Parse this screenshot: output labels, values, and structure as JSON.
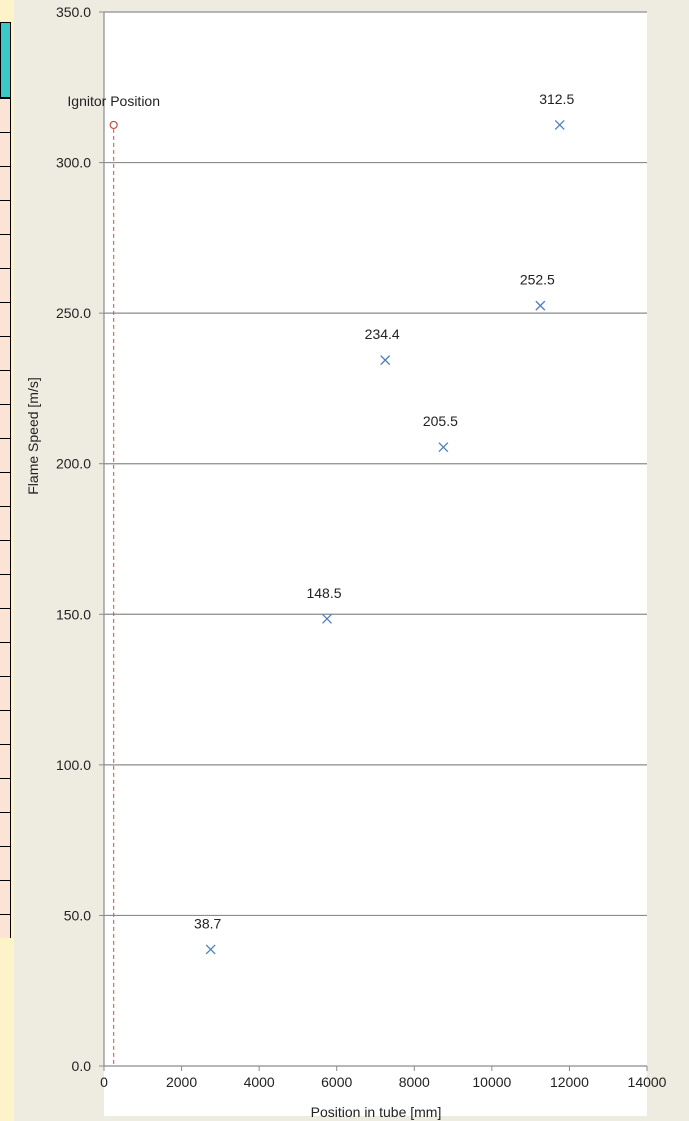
{
  "chart_data": {
    "type": "scatter",
    "title": "",
    "xlabel": "Position in tube [mm]",
    "ylabel": "Flame Speed [m/s]",
    "xlim": [
      0,
      14000
    ],
    "ylim": [
      0,
      350
    ],
    "x_ticks": [
      "0",
      "2000",
      "4000",
      "6000",
      "8000",
      "10000",
      "12000",
      "14000"
    ],
    "y_ticks": [
      "0.0",
      "50.0",
      "100.0",
      "150.0",
      "200.0",
      "250.0",
      "300.0",
      "350.0"
    ],
    "grid": "horizontal",
    "series": [
      {
        "marker": "x",
        "color": "#4f81bd",
        "points": [
          {
            "x": 2750,
            "y": 38.7,
            "label": "38.7"
          },
          {
            "x": 5750,
            "y": 148.5,
            "label": "148.5"
          },
          {
            "x": 7250,
            "y": 234.4,
            "label": "234.4"
          },
          {
            "x": 8750,
            "y": 205.5,
            "label": "205.5"
          },
          {
            "x": 11250,
            "y": 252.5,
            "label": "252.5"
          },
          {
            "x": 11750,
            "y": 312.5,
            "label": "312.5"
          }
        ]
      }
    ],
    "annotation": {
      "text": "Ignitor Position",
      "x": 250,
      "y": 312.5,
      "color": "#c0504d",
      "line": "dashed-vertical"
    }
  }
}
